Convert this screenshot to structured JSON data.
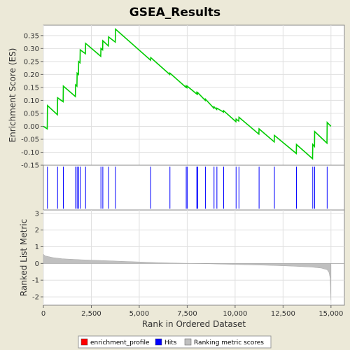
{
  "chart_data": {
    "type": "line",
    "title": "GSEA_Results",
    "xlabel": "Rank in Ordered Dataset",
    "xlim": [
      0,
      15700
    ],
    "x_ticks": [
      0,
      2500,
      5000,
      7500,
      10000,
      12500,
      15000
    ],
    "x_tick_labels": [
      "0",
      "2,500",
      "5,000",
      "7,500",
      "10,000",
      "12,500",
      "15,000"
    ],
    "enrichment_panel": {
      "ylabel": "Enrichment Score (ES)",
      "ylim": [
        -0.15,
        0.39
      ],
      "y_ticks": [
        -0.15,
        -0.1,
        -0.05,
        0.0,
        0.05,
        0.1,
        0.15,
        0.2,
        0.25,
        0.3,
        0.35
      ],
      "y_tick_labels": [
        "-0.15",
        "-0.10",
        "-0.05",
        "0.00",
        "0.05",
        "0.10",
        "0.15",
        "0.20",
        "0.25",
        "0.30",
        "0.35"
      ],
      "color": "#00cc00",
      "hits": [
        210,
        740,
        1040,
        1680,
        1760,
        1840,
        1920,
        2200,
        3000,
        3100,
        3400,
        3760,
        5600,
        6600,
        7450,
        7500,
        8000,
        8050,
        8450,
        8900,
        9050,
        9400,
        10050,
        10200,
        11250,
        12050,
        13200,
        14050,
        14150,
        14800
      ],
      "points": [
        [
          0,
          0.0
        ],
        [
          200,
          -0.01
        ],
        [
          210,
          0.08
        ],
        [
          730,
          0.045
        ],
        [
          740,
          0.11
        ],
        [
          1030,
          0.095
        ],
        [
          1040,
          0.155
        ],
        [
          1670,
          0.115
        ],
        [
          1680,
          0.16
        ],
        [
          1750,
          0.155
        ],
        [
          1760,
          0.205
        ],
        [
          1830,
          0.2
        ],
        [
          1840,
          0.25
        ],
        [
          1910,
          0.245
        ],
        [
          1920,
          0.295
        ],
        [
          2190,
          0.28
        ],
        [
          2200,
          0.32
        ],
        [
          2990,
          0.27
        ],
        [
          3000,
          0.3
        ],
        [
          3090,
          0.295
        ],
        [
          3100,
          0.33
        ],
        [
          3390,
          0.31
        ],
        [
          3400,
          0.345
        ],
        [
          3750,
          0.325
        ],
        [
          3760,
          0.375
        ],
        [
          5590,
          0.255
        ],
        [
          5600,
          0.265
        ],
        [
          6590,
          0.2
        ],
        [
          6600,
          0.205
        ],
        [
          7440,
          0.15
        ],
        [
          7450,
          0.155
        ],
        [
          7490,
          0.15
        ],
        [
          7500,
          0.155
        ],
        [
          7990,
          0.125
        ],
        [
          8000,
          0.13
        ],
        [
          8040,
          0.125
        ],
        [
          8050,
          0.13
        ],
        [
          8440,
          0.1
        ],
        [
          8450,
          0.105
        ],
        [
          8890,
          0.07
        ],
        [
          8900,
          0.075
        ],
        [
          9040,
          0.065
        ],
        [
          9050,
          0.07
        ],
        [
          9390,
          0.055
        ],
        [
          9400,
          0.06
        ],
        [
          10040,
          0.018
        ],
        [
          10050,
          0.028
        ],
        [
          10190,
          0.02
        ],
        [
          10200,
          0.035
        ],
        [
          11240,
          -0.03
        ],
        [
          11250,
          -0.01
        ],
        [
          12040,
          -0.06
        ],
        [
          12050,
          -0.035
        ],
        [
          13190,
          -0.105
        ],
        [
          13200,
          -0.07
        ],
        [
          14040,
          -0.125
        ],
        [
          14050,
          -0.07
        ],
        [
          14140,
          -0.078
        ],
        [
          14150,
          -0.02
        ],
        [
          14790,
          -0.065
        ],
        [
          14800,
          0.015
        ],
        [
          15000,
          0.0
        ]
      ]
    },
    "ranking_panel": {
      "ylabel": "Ranked List Metric",
      "ylim": [
        -2.5,
        3.2
      ],
      "y_ticks": [
        -2,
        -1,
        0,
        1,
        2,
        3
      ],
      "y_tick_labels": [
        "-2",
        "-1",
        "0",
        "1",
        "2",
        "3"
      ],
      "color": "#c0c0c0",
      "profile": [
        [
          0,
          0.55
        ],
        [
          100,
          0.45
        ],
        [
          500,
          0.35
        ],
        [
          1000,
          0.28
        ],
        [
          2000,
          0.22
        ],
        [
          3000,
          0.18
        ],
        [
          4000,
          0.13
        ],
        [
          5000,
          0.09
        ],
        [
          6000,
          0.05
        ],
        [
          7000,
          0.02
        ],
        [
          8000,
          0.0
        ],
        [
          9000,
          -0.03
        ],
        [
          10000,
          -0.06
        ],
        [
          11000,
          -0.09
        ],
        [
          12000,
          -0.12
        ],
        [
          13000,
          -0.16
        ],
        [
          14000,
          -0.22
        ],
        [
          14500,
          -0.28
        ],
        [
          14800,
          -0.38
        ],
        [
          14900,
          -0.55
        ],
        [
          14960,
          -0.9
        ],
        [
          15000,
          -2.2
        ]
      ]
    },
    "legend": {
      "placement": "bottom",
      "entries": [
        {
          "label": "enrichment_profile",
          "color": "#ff0000"
        },
        {
          "label": "Hits",
          "color": "#0000ff"
        },
        {
          "label": "Ranking metric scores",
          "color": "#c0c0c0"
        }
      ]
    }
  }
}
